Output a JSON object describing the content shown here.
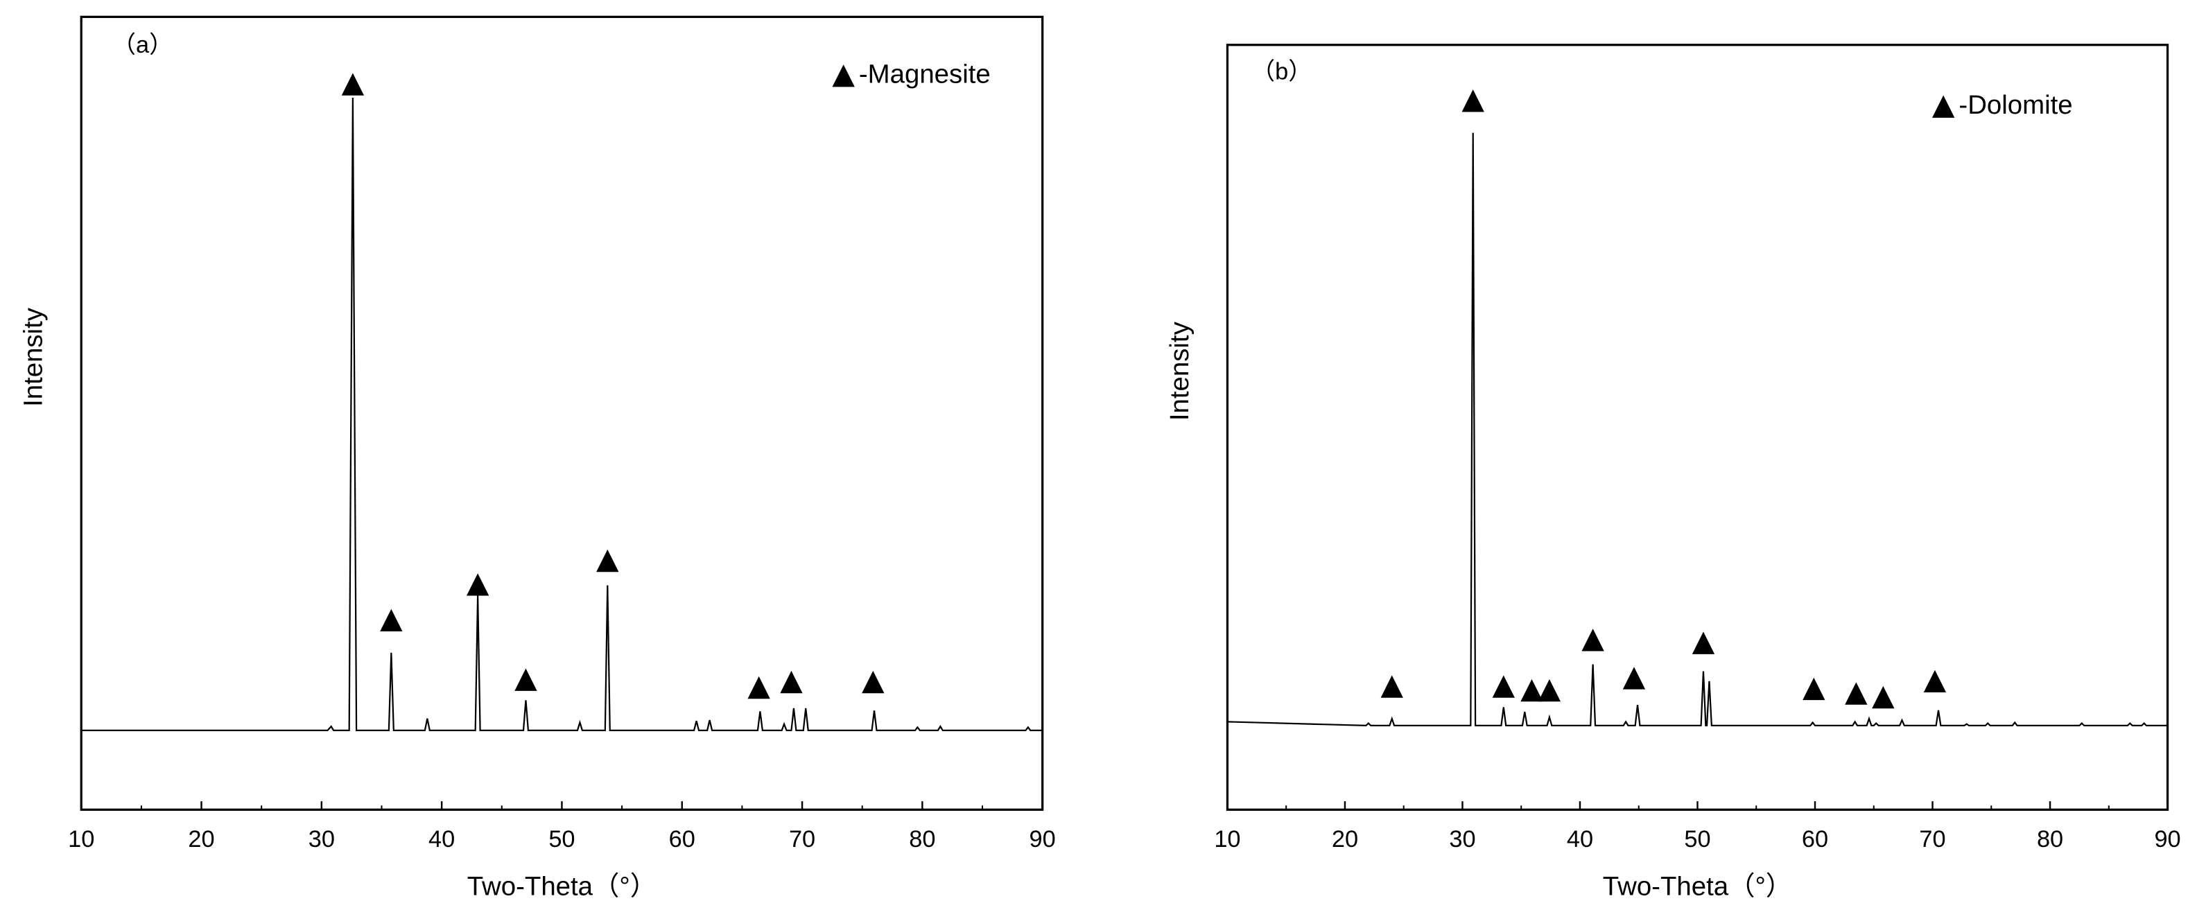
{
  "chart_data": [
    {
      "type": "line",
      "panel_label": "（a）",
      "legend": "-Magnesite",
      "xlabel": "Two-Theta（°）",
      "ylabel": "Intensity",
      "xlim": [
        10,
        90
      ],
      "xticks": [
        10,
        20,
        30,
        40,
        50,
        60,
        70,
        80,
        90
      ],
      "ylim": [
        0,
        100
      ],
      "color": "#000000",
      "x": [
        10,
        30.5,
        30.8,
        31,
        32.3,
        32.6,
        32.9,
        35.6,
        35.8,
        36,
        38.6,
        38.8,
        39,
        42.8,
        43,
        43.2,
        46.8,
        47,
        47.2,
        51.3,
        51.5,
        51.7,
        53.6,
        53.8,
        54,
        61,
        61.2,
        61.4,
        62.1,
        62.3,
        62.5,
        66.3,
        66.5,
        66.7,
        68.3,
        68.5,
        68.7,
        69.1,
        69.3,
        69.5,
        70.1,
        70.3,
        70.5,
        75.8,
        76,
        76.2,
        79.4,
        79.6,
        79.8,
        81.3,
        81.5,
        81.7,
        88.6,
        88.8,
        89,
        90
      ],
      "values": [
        10,
        10,
        10.5,
        10,
        10,
        89.8,
        10,
        10,
        19.8,
        10,
        10,
        11.5,
        10,
        10,
        27,
        10,
        10,
        13.8,
        10,
        10,
        11,
        10,
        10,
        28.3,
        10,
        10,
        11.2,
        10,
        10,
        11.3,
        10,
        10,
        12.4,
        10,
        10,
        10.8,
        10,
        10,
        12.8,
        10,
        10,
        12.8,
        10,
        10,
        12.5,
        10,
        10,
        10.4,
        10,
        10,
        10.5,
        10,
        10,
        10.4,
        10,
        10
      ],
      "markers": {
        "x": [
          32.6,
          35.8,
          43,
          47,
          53.8,
          66.4,
          69.1,
          75.9
        ],
        "y": [
          91.5,
          23.9,
          28.4,
          16.4,
          31.4,
          15.4,
          16.1,
          16.1
        ]
      }
    },
    {
      "type": "line",
      "panel_label": "（b）",
      "legend": "-Dolomite",
      "xlabel": "Two-Theta（°）",
      "ylabel": "Intensity",
      "xlim": [
        10,
        90
      ],
      "xticks": [
        10,
        20,
        30,
        40,
        50,
        60,
        70,
        80,
        90
      ],
      "ylim": [
        0,
        100
      ],
      "color": "#000000",
      "x": [
        10,
        21.8,
        22,
        22.2,
        23.8,
        24,
        24.2,
        30.7,
        30.9,
        31.1,
        33.3,
        33.5,
        33.7,
        35.1,
        35.3,
        35.5,
        37.2,
        37.4,
        37.6,
        40.9,
        41.1,
        41.3,
        43.7,
        43.9,
        44.1,
        44.7,
        44.9,
        45.1,
        50.3,
        50.5,
        50.7,
        50.8,
        51,
        51.2,
        59.6,
        59.8,
        60,
        63.2,
        63.4,
        63.6,
        64.4,
        64.6,
        64.8,
        65,
        65.2,
        65.4,
        67.2,
        67.4,
        67.6,
        70.3,
        70.5,
        70.7,
        72.7,
        72.9,
        73.1,
        74.5,
        74.7,
        74.9,
        76.8,
        77,
        77.2,
        82.5,
        82.7,
        82.9,
        86.6,
        86.8,
        87,
        87.8,
        88,
        88.2,
        90
      ],
      "values": [
        11.5,
        11,
        11.3,
        11,
        11,
        11.9,
        11,
        11,
        88.5,
        11,
        11,
        13.4,
        11,
        11,
        12.8,
        11,
        11,
        12.1,
        11,
        11,
        19,
        11,
        11,
        11.5,
        11,
        11,
        13.7,
        11,
        11,
        18.1,
        11,
        11,
        16.8,
        11,
        11,
        11.4,
        11,
        11,
        11.5,
        11,
        11,
        11.9,
        11,
        11,
        11.3,
        11,
        11,
        11.7,
        11,
        11,
        13,
        11,
        11,
        11.2,
        11,
        11,
        11.3,
        11,
        11,
        11.4,
        11,
        11,
        11.3,
        11,
        11,
        11.3,
        11,
        11,
        11.3,
        11,
        11
      ],
      "markers": {
        "x": [
          24,
          30.9,
          33.5,
          35.9,
          37.4,
          41.1,
          44.6,
          50.5,
          59.9,
          63.5,
          65.8,
          70.2
        ],
        "y": [
          16.1,
          92.7,
          16.1,
          15.6,
          15.6,
          22.2,
          17.2,
          21.8,
          15.8,
          15.2,
          14.7,
          16.8
        ]
      }
    }
  ]
}
